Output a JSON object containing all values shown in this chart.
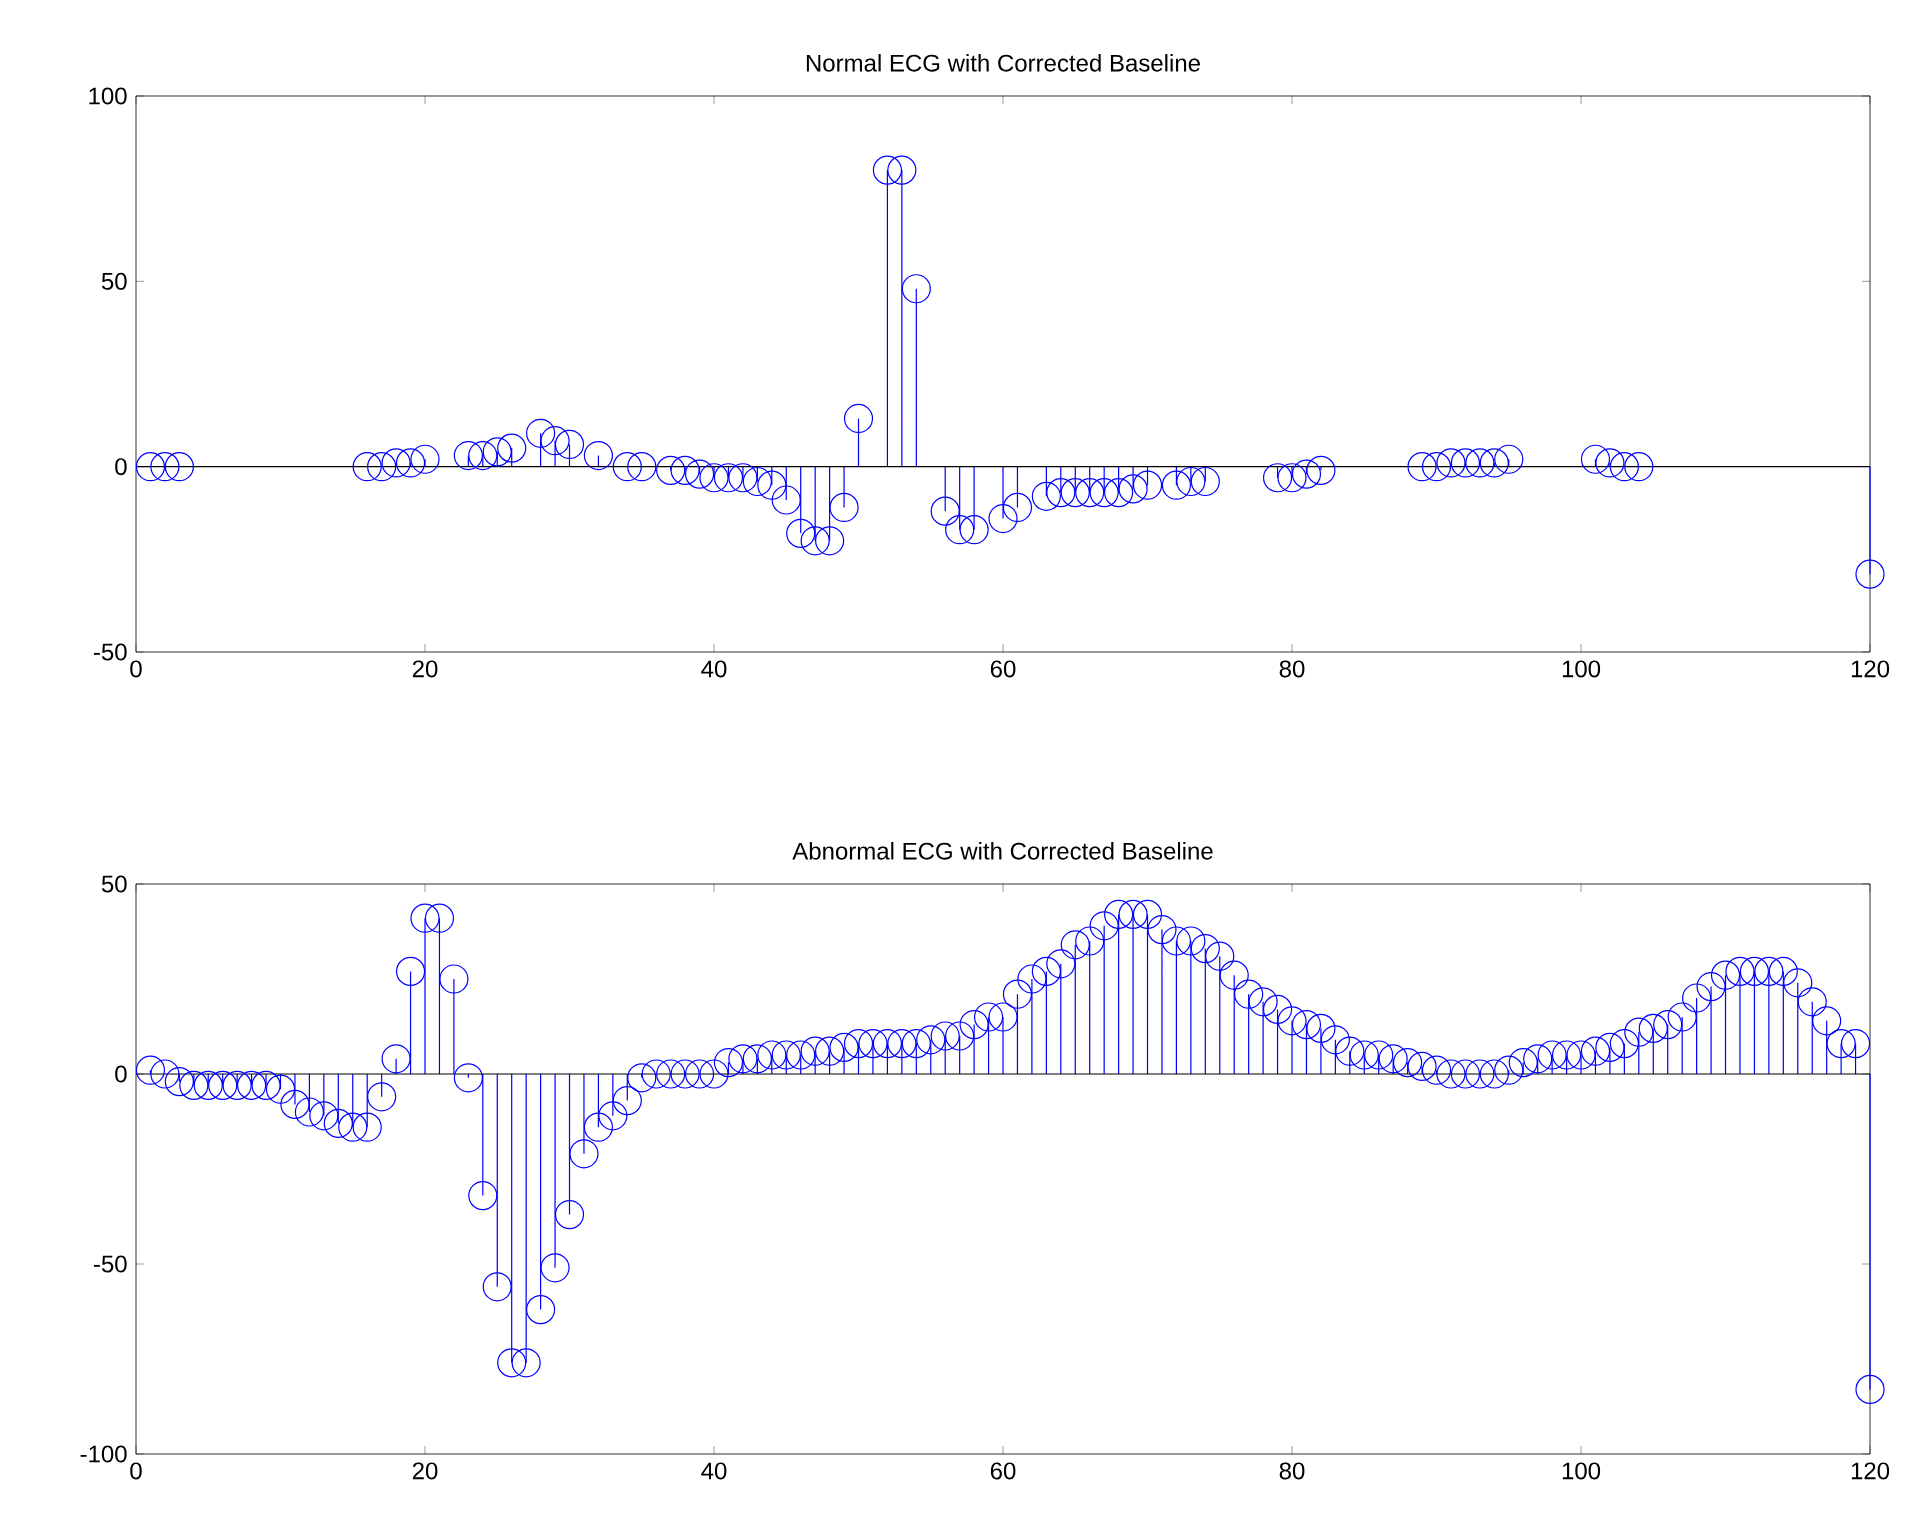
{
  "chart_data": [
    {
      "type": "lollipop",
      "title": "Normal ECG with Corrected Baseline",
      "color": "#0000ff",
      "marker": "circle",
      "x": [
        1,
        2,
        3,
        16,
        17,
        18,
        19,
        20,
        23,
        24,
        25,
        26,
        28,
        29,
        30,
        32,
        34,
        35,
        37,
        38,
        39,
        40,
        41,
        42,
        43,
        44,
        45,
        46,
        47,
        48,
        49,
        50,
        52,
        53,
        54,
        56,
        57,
        58,
        60,
        61,
        63,
        64,
        65,
        66,
        67,
        68,
        69,
        70,
        72,
        73,
        74,
        79,
        80,
        81,
        82,
        89,
        90,
        91,
        92,
        93,
        94,
        95,
        101,
        102,
        103,
        104,
        120
      ],
      "values": [
        0,
        0,
        0,
        0,
        0,
        1,
        1,
        2,
        3,
        3,
        4,
        5,
        9,
        7,
        6,
        3,
        0,
        0,
        -1,
        -1,
        -2,
        -3,
        -3,
        -3,
        -4,
        -5,
        -9,
        -18,
        -20,
        -20,
        -11,
        13,
        80,
        80,
        48,
        -12,
        -17,
        -17,
        -14,
        -11,
        -8,
        -7,
        -7,
        -7,
        -7,
        -7,
        -6,
        -5,
        -5,
        -4,
        -4,
        -3,
        -3,
        -2,
        -1,
        0,
        0,
        1,
        1,
        1,
        1,
        2,
        2,
        1,
        0,
        0,
        -29
      ],
      "xlim": [
        0,
        120
      ],
      "xticks": [
        0,
        20,
        40,
        60,
        80,
        100,
        120
      ],
      "ylim": [
        -50,
        100
      ],
      "yticks": [
        -50,
        0,
        50,
        100
      ]
    },
    {
      "type": "lollipop",
      "title": "Abnormal ECG with Corrected Baseline",
      "color": "#0000ff",
      "marker": "circle",
      "x": [
        1,
        2,
        3,
        4,
        5,
        6,
        7,
        8,
        9,
        10,
        11,
        12,
        13,
        14,
        15,
        16,
        17,
        18,
        19,
        20,
        21,
        22,
        23,
        24,
        25,
        26,
        27,
        28,
        29,
        30,
        31,
        32,
        33,
        34,
        35,
        36,
        37,
        38,
        39,
        40,
        41,
        42,
        43,
        44,
        45,
        46,
        47,
        48,
        49,
        50,
        51,
        52,
        53,
        54,
        55,
        56,
        57,
        58,
        59,
        60,
        61,
        62,
        63,
        64,
        65,
        66,
        67,
        68,
        69,
        70,
        71,
        72,
        73,
        74,
        75,
        76,
        77,
        78,
        79,
        80,
        81,
        82,
        83,
        84,
        85,
        86,
        87,
        88,
        89,
        90,
        91,
        92,
        93,
        94,
        95,
        96,
        97,
        98,
        99,
        100,
        101,
        102,
        103,
        104,
        105,
        106,
        107,
        108,
        109,
        110,
        111,
        112,
        113,
        114,
        115,
        116,
        117,
        118,
        119,
        120
      ],
      "values": [
        1,
        0,
        -2,
        -3,
        -3,
        -3,
        -3,
        -3,
        -3,
        -4,
        -8,
        -10,
        -11,
        -13,
        -14,
        -14,
        -6,
        4,
        27,
        41,
        41,
        25,
        -1,
        -32,
        -56,
        -76,
        -76,
        -62,
        -51,
        -37,
        -21,
        -14,
        -11,
        -7,
        -1,
        0,
        0,
        0,
        0,
        0,
        3,
        4,
        4,
        5,
        5,
        5,
        6,
        6,
        7,
        8,
        8,
        8,
        8,
        8,
        9,
        10,
        10,
        13,
        15,
        15,
        21,
        25,
        27,
        29,
        34,
        35,
        39,
        42,
        42,
        42,
        38,
        35,
        35,
        33,
        31,
        26,
        21,
        19,
        17,
        14,
        13,
        12,
        9,
        6,
        5,
        5,
        4,
        3,
        2,
        1,
        0,
        0,
        0,
        0,
        1,
        3,
        4,
        5,
        5,
        5,
        6,
        7,
        8,
        11,
        12,
        13,
        15,
        20,
        23,
        26,
        27,
        27,
        27,
        27,
        24,
        19,
        14,
        8,
        8,
        -83
      ],
      "xlim": [
        0,
        120
      ],
      "xticks": [
        0,
        20,
        40,
        60,
        80,
        100,
        120
      ],
      "ylim": [
        -100,
        50
      ],
      "yticks": [
        -100,
        -50,
        0,
        50
      ]
    }
  ]
}
